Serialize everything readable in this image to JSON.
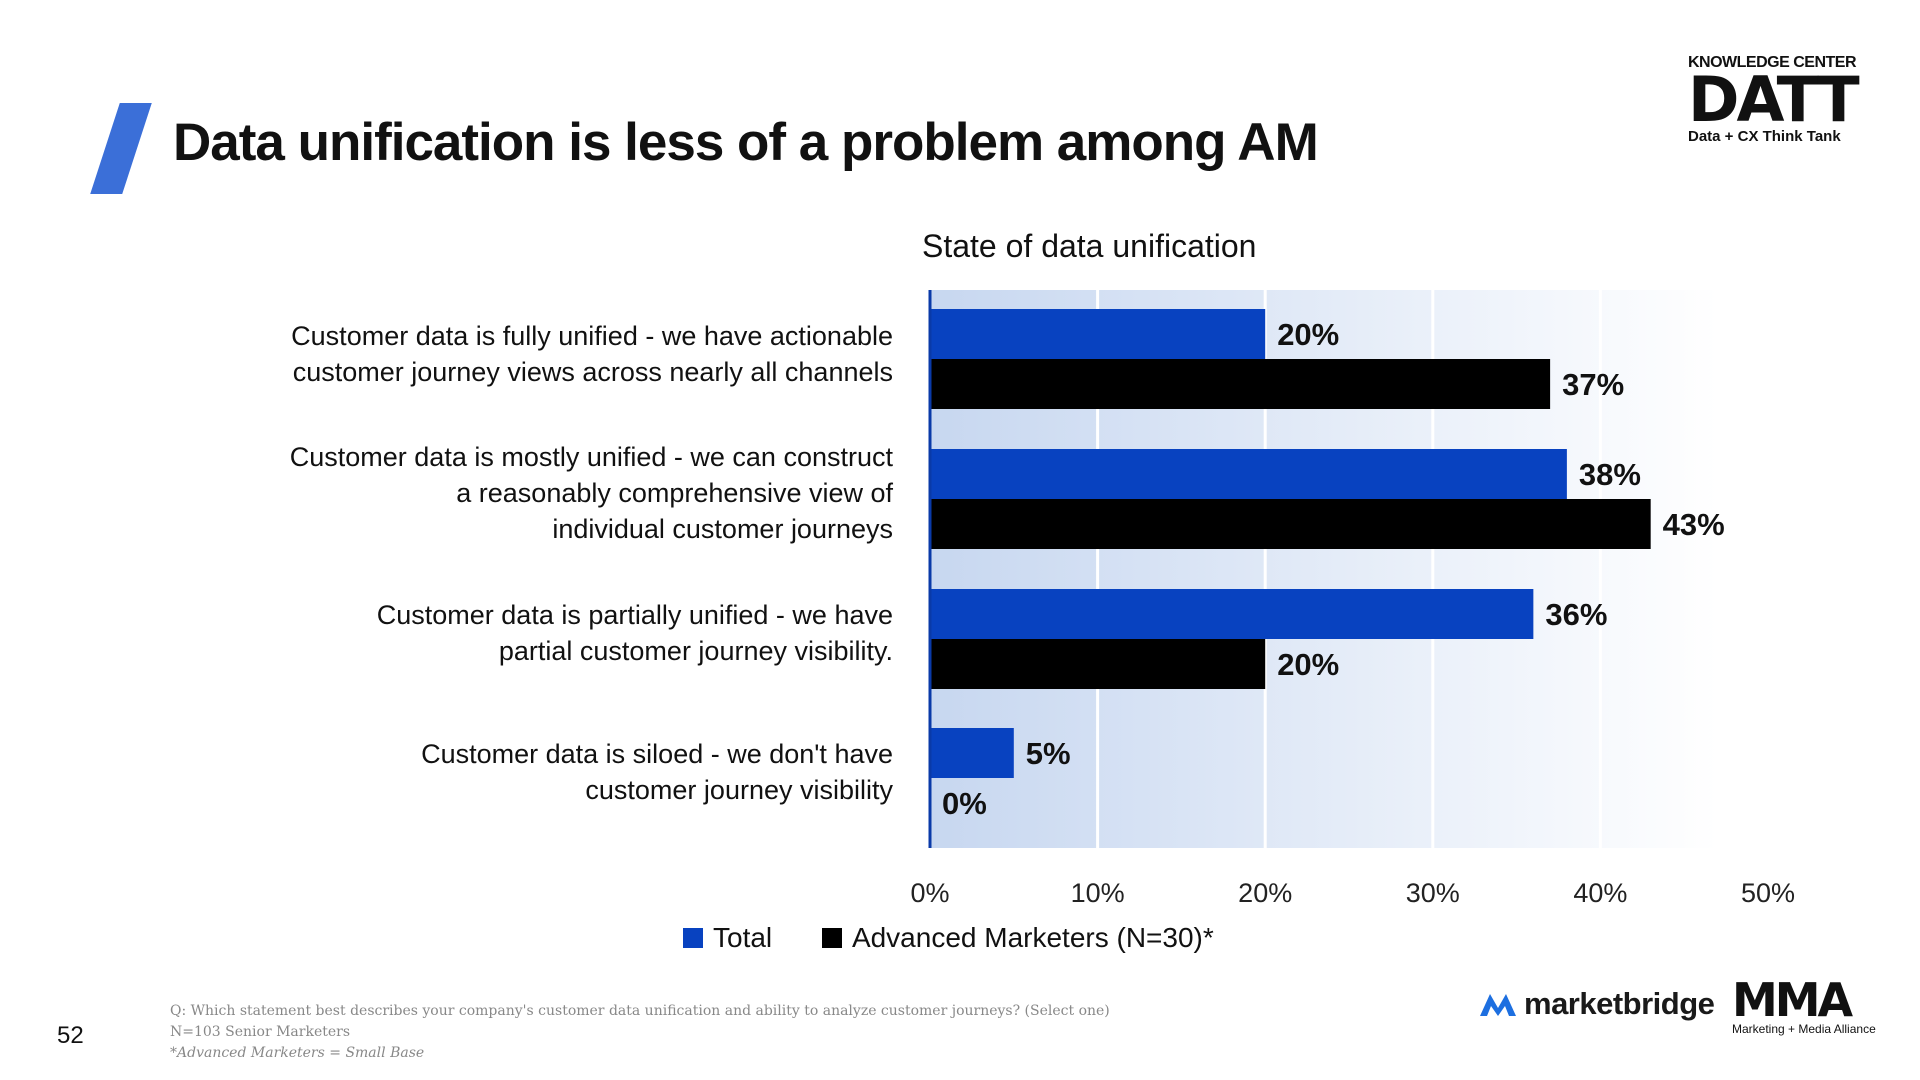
{
  "slide": {
    "title": "Data unification is less of a problem among AM",
    "page_number": "52"
  },
  "logos": {
    "datt_top": "KNOWLEDGE CENTER",
    "datt_big": "DATT",
    "datt_sub": "Data + CX Think Tank",
    "marketbridge": "marketbridge",
    "mma_big": "MMA",
    "mma_sub": "Marketing + Media Alliance"
  },
  "colors": {
    "total": "#0842c0",
    "advanced": "#000000",
    "accent": "#3b6fd8"
  },
  "chart_data": {
    "type": "bar",
    "orientation": "horizontal",
    "title": "State of data unification",
    "categories": [
      "Customer data is fully unified - we have actionable customer journey views across nearly all channels",
      "Customer data is mostly unified - we can construct a reasonably comprehensive view of individual customer journeys",
      "Customer data is partially unified - we have partial customer journey visibility.",
      "Customer data is siloed - we don't have customer journey visibility"
    ],
    "series": [
      {
        "name": "Total",
        "values": [
          20,
          38,
          36,
          5
        ]
      },
      {
        "name": "Advanced Marketers (N=30)*",
        "values": [
          37,
          43,
          20,
          0
        ]
      }
    ],
    "data_labels": [
      [
        "20%",
        "38%",
        "36%",
        "5%"
      ],
      [
        "37%",
        "43%",
        "20%",
        "0%"
      ]
    ],
    "xlim": [
      0,
      50
    ],
    "xticks": [
      "0%",
      "10%",
      "20%",
      "30%",
      "40%",
      "50%"
    ],
    "grid": true,
    "legend": "bottom"
  },
  "labels": {
    "cat0_line1": "Customer data is fully unified - we have actionable",
    "cat0_line2": "customer journey views across nearly all channels",
    "cat1_line1": "Customer data is mostly unified - we can construct",
    "cat1_line2": "a reasonably comprehensive view of",
    "cat1_line3": "individual customer journeys",
    "cat2_line1": "Customer data is partially unified - we have",
    "cat2_line2": "partial customer journey visibility.",
    "cat3_line1": "Customer data is siloed - we don't have",
    "cat3_line2": "customer journey visibility"
  },
  "legend": {
    "total": "Total",
    "advanced": "Advanced Marketers (N=30)*"
  },
  "footnote": {
    "question": "Q: Which statement best describes your company's customer data unification and ability to analyze customer journeys? (Select one)",
    "base": "N=103 Senior Marketers",
    "note": "*Advanced Marketers = Small Base"
  }
}
